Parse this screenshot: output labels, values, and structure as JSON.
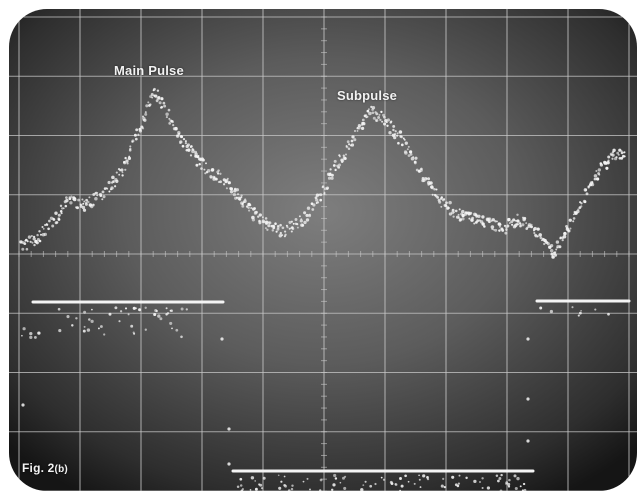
{
  "figure": {
    "annotations": {
      "main_pulse": "Main Pulse",
      "subpulse": "Subpulse"
    },
    "caption": {
      "prefix": "Fig. 2",
      "suffix": "(b)"
    }
  },
  "colors": {
    "screen_dark": "#1c1c1c",
    "screen_mid": "#5a5a5a",
    "screen_light": "#8a8a8a",
    "grid_line": "#c8c8c8",
    "trace": "#f4f4f4",
    "page_background": "#ffffff"
  },
  "scope_grid": {
    "divisions_x": 10,
    "divisions_y": 8
  }
}
